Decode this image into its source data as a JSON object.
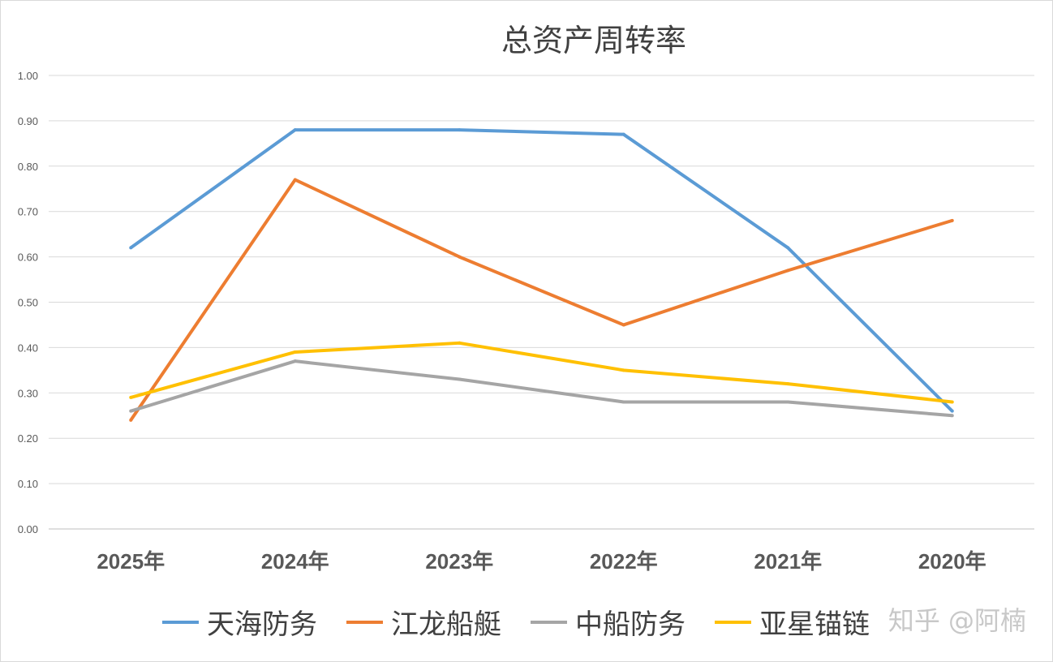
{
  "chart_data": {
    "type": "line",
    "title": "总资产周转率",
    "categories": [
      "2025年",
      "2024年",
      "2023年",
      "2022年",
      "2021年",
      "2020年"
    ],
    "ylim": [
      0,
      1.0
    ],
    "yticks": [
      "0.00",
      "0.10",
      "0.20",
      "0.30",
      "0.40",
      "0.50",
      "0.60",
      "0.70",
      "0.80",
      "0.90",
      "1.00"
    ],
    "grid": true,
    "legend_position": "bottom",
    "series": [
      {
        "name": "天海防务",
        "color": "#5b9bd5",
        "values": [
          0.62,
          0.88,
          0.88,
          0.87,
          0.62,
          0.26
        ]
      },
      {
        "name": "江龙船艇",
        "color": "#ed7d31",
        "values": [
          0.24,
          0.77,
          0.6,
          0.45,
          0.57,
          0.68
        ]
      },
      {
        "name": "中船防务",
        "color": "#a5a5a5",
        "values": [
          0.26,
          0.37,
          0.33,
          0.28,
          0.28,
          0.25
        ]
      },
      {
        "name": "亚星锚链",
        "color": "#ffc000",
        "values": [
          0.29,
          0.39,
          0.41,
          0.35,
          0.32,
          0.28
        ]
      }
    ]
  },
  "watermark": "知乎 @阿楠"
}
